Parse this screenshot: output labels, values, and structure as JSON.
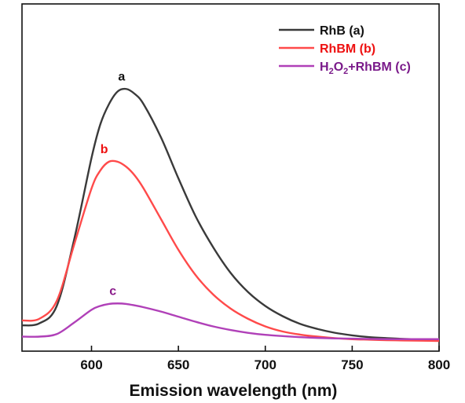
{
  "chart_data": {
    "type": "line",
    "title": "",
    "xlabel": "Emission wavelength (nm)",
    "ylabel": "",
    "xlim": [
      560,
      800
    ],
    "ylim": [
      0,
      100
    ],
    "x_ticks": [
      "600",
      "650",
      "700",
      "750",
      "800"
    ],
    "x_tick_values": [
      600,
      650,
      700,
      750,
      800
    ],
    "y_ticks_shown": false,
    "grid": false,
    "legend_position": "top-right",
    "series": [
      {
        "name": "RhB (a)",
        "legend_html_parts": [
          "RhB (a)"
        ],
        "curve_label": "a",
        "color": "#3a3a3a",
        "x": [
          560,
          570,
          580,
          590,
          600,
          605,
          610,
          615,
          620,
          625,
          630,
          640,
          650,
          660,
          670,
          680,
          690,
          700,
          710,
          720,
          730,
          740,
          750,
          760,
          770,
          780,
          790,
          800
        ],
        "y": [
          6.4,
          7.2,
          14,
          40,
          72,
          85,
          93,
          98,
          99,
          97,
          93,
          80,
          64,
          49,
          37,
          27,
          19.5,
          14,
          10,
          7,
          5,
          3.5,
          2.5,
          1.8,
          1.4,
          1.1,
          0.9,
          0.8
        ]
      },
      {
        "name": "RhBM (b)",
        "legend_html_parts": [
          "RhBM (b)"
        ],
        "curve_label": "b",
        "color": "#ff4a4a",
        "x": [
          560,
          570,
          580,
          590,
          600,
          605,
          610,
          615,
          620,
          625,
          630,
          640,
          650,
          660,
          670,
          680,
          690,
          700,
          710,
          720,
          730,
          740,
          750,
          760,
          770,
          780,
          790,
          800
        ],
        "y": [
          8.3,
          9,
          16,
          38,
          60,
          67,
          70.5,
          70.5,
          68.5,
          65,
          60,
          48,
          36,
          26,
          18.5,
          13,
          9,
          6,
          4,
          2.8,
          2,
          1.4,
          1,
          0.8,
          0.6,
          0.5,
          0.4,
          0.3
        ]
      },
      {
        "name": "H2O2+RhBM (c)",
        "legend_html_parts": [
          "H",
          "2",
          "O",
          "2",
          "+RhBM (c)"
        ],
        "curve_label": "c",
        "color": "#b040b8",
        "x": [
          560,
          570,
          580,
          590,
          600,
          605,
          610,
          615,
          620,
          625,
          630,
          640,
          650,
          660,
          670,
          680,
          690,
          700,
          710,
          720,
          730,
          740,
          750,
          760,
          770,
          780,
          790,
          800
        ],
        "y": [
          2,
          2,
          3,
          7.5,
          12.5,
          14,
          14.8,
          15,
          14.8,
          14.2,
          13.5,
          11.8,
          9.8,
          7.8,
          6,
          4.6,
          3.5,
          2.7,
          2.2,
          1.8,
          1.5,
          1.3,
          1.2,
          1.1,
          1,
          1,
          1,
          1
        ]
      }
    ]
  }
}
